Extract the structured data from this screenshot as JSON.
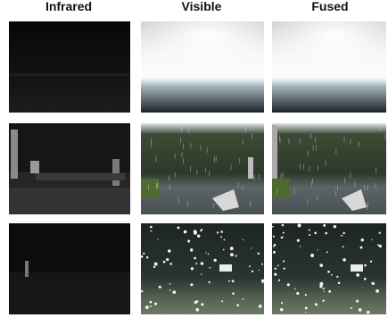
{
  "columns": [
    "Infrared",
    "Visible",
    "Fused"
  ]
}
